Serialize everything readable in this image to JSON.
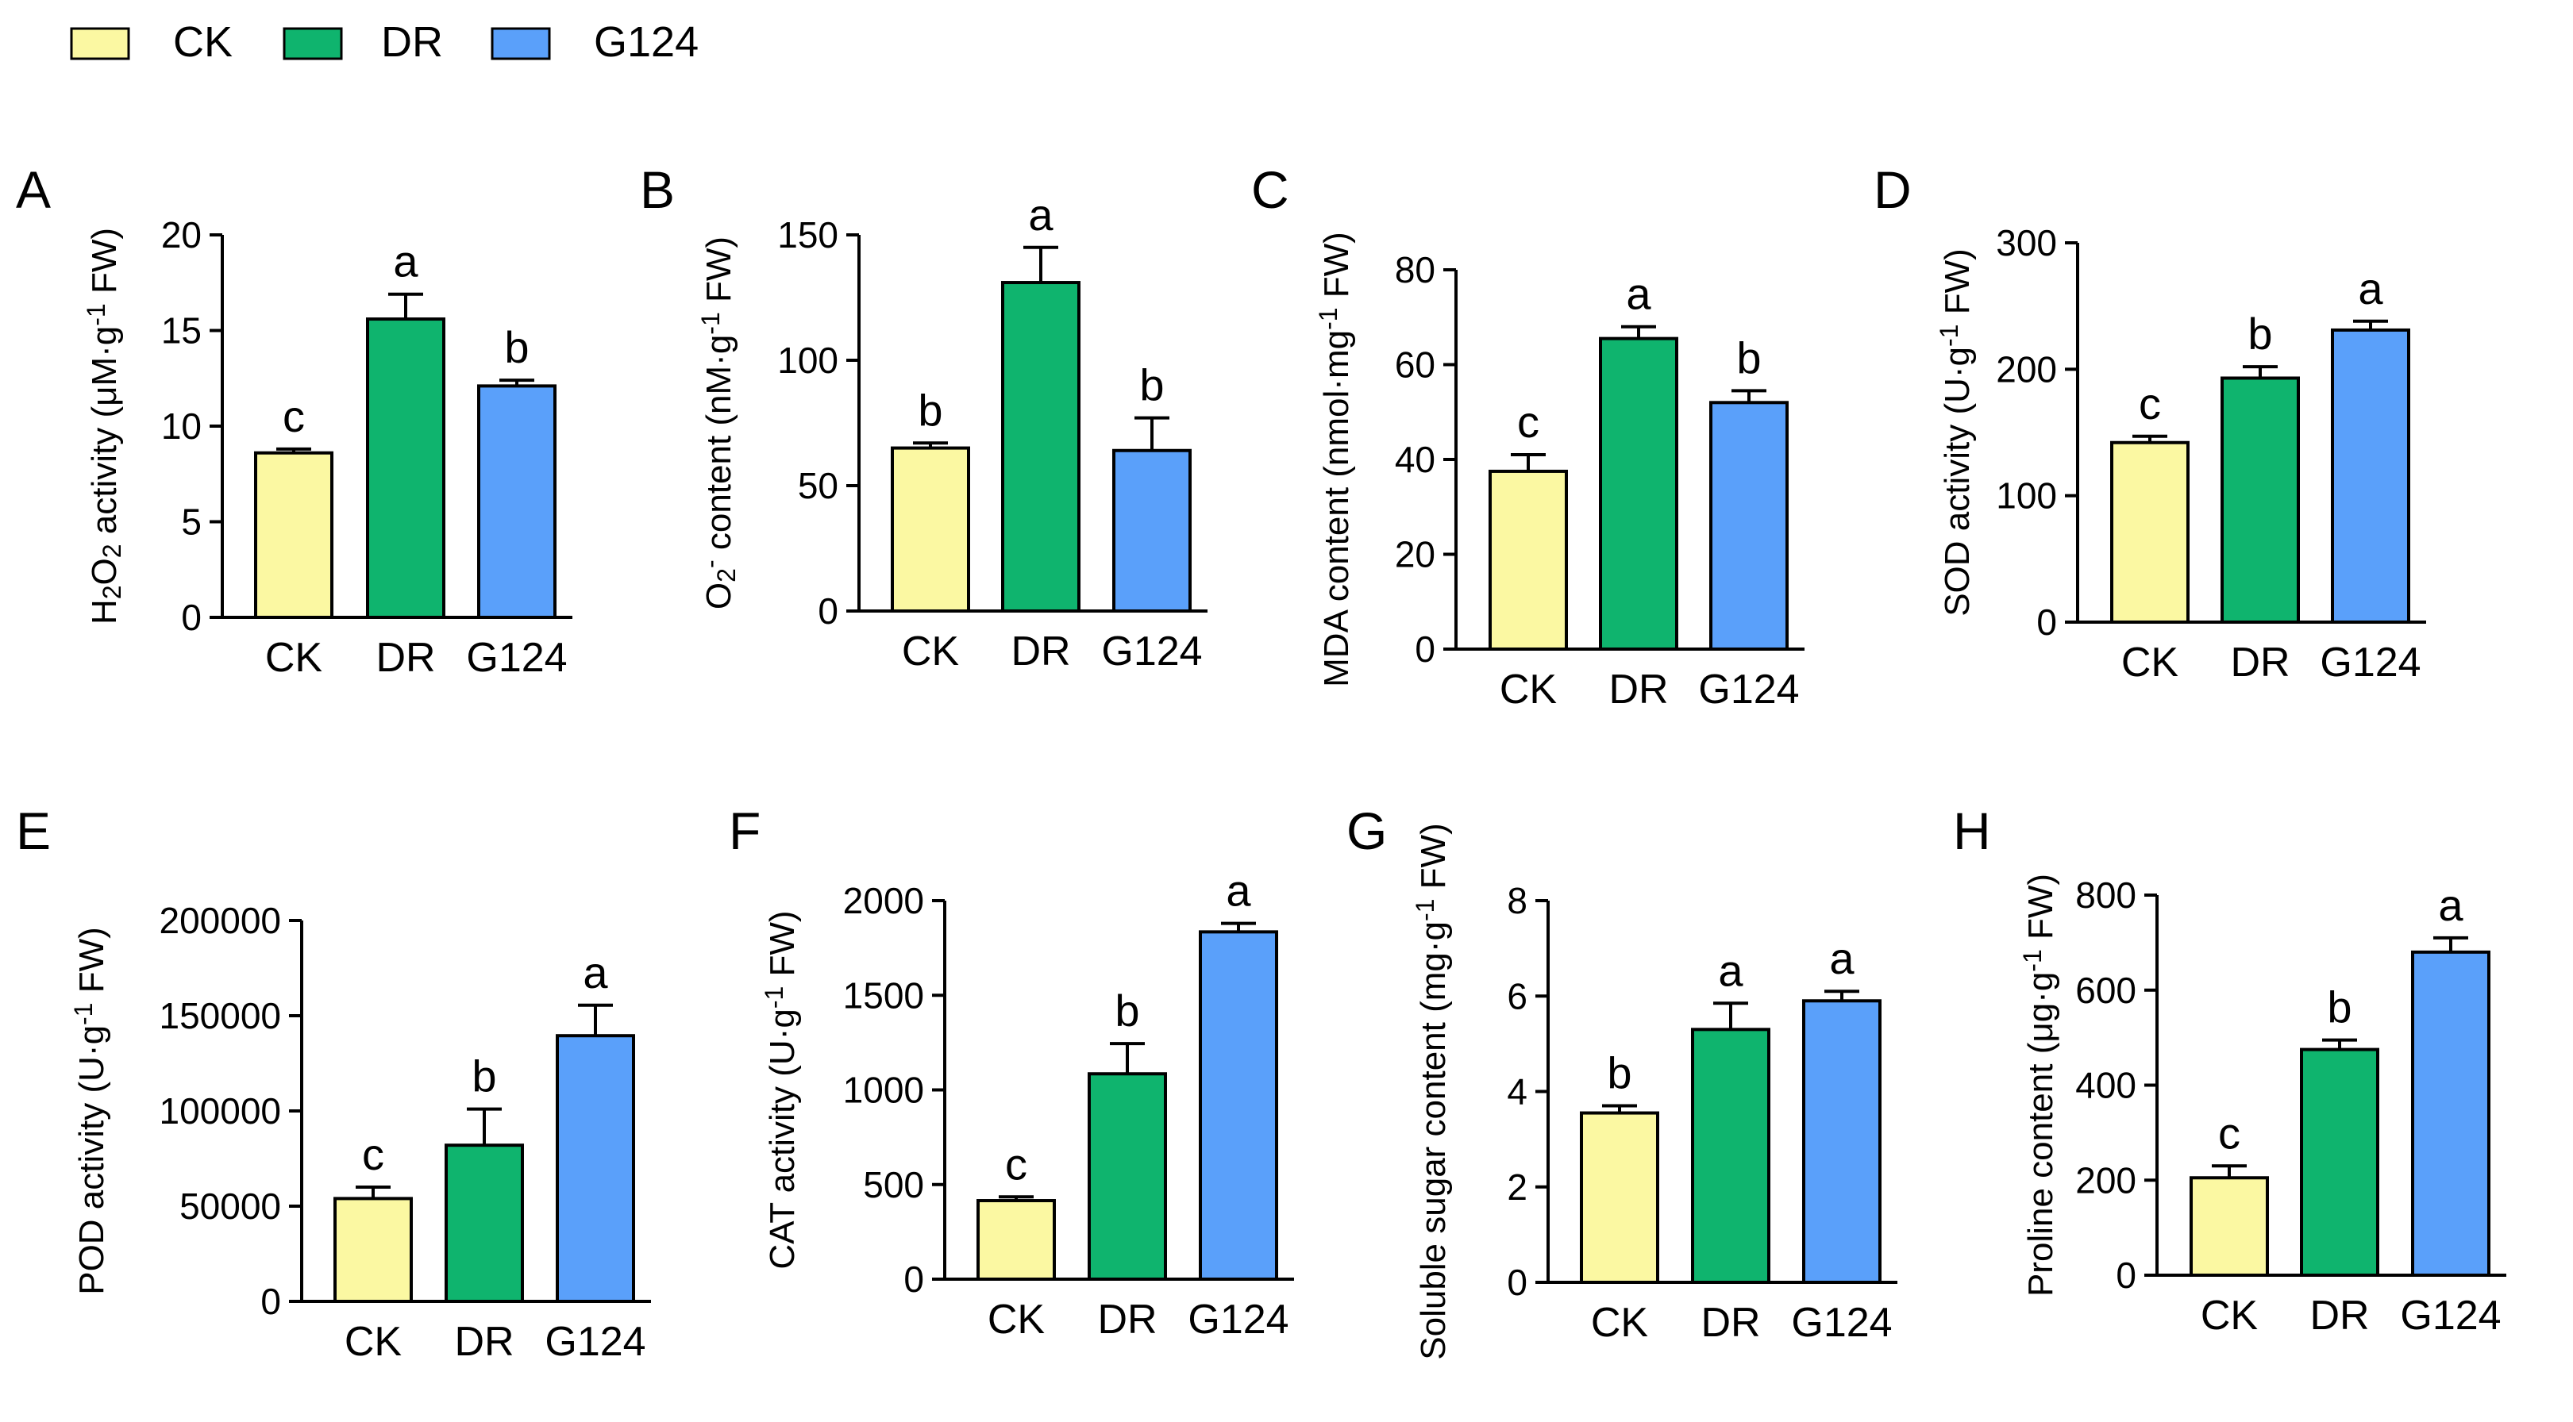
{
  "legend": [
    {
      "label": "CK",
      "color": "#fbf8a2"
    },
    {
      "label": "DR",
      "color": "#0fb46e"
    },
    {
      "label": "G124",
      "color": "#5aa0fa"
    }
  ],
  "chart_data": [
    {
      "panel": "A",
      "type": "bar",
      "title": "",
      "ylabel_parts": [
        "H",
        "2",
        "O",
        "2",
        " activity (μM·g",
        "-1",
        " FW)"
      ],
      "categories": [
        "CK",
        "DR",
        "G124"
      ],
      "values": [
        8.6,
        15.6,
        12.1
      ],
      "errors": [
        0.2,
        1.3,
        0.3
      ],
      "letters": [
        "c",
        "a",
        "b"
      ],
      "ylim": [
        0,
        20
      ],
      "yticks": [
        0,
        5,
        10,
        15,
        20
      ]
    },
    {
      "panel": "B",
      "type": "bar",
      "title": "",
      "ylabel_parts": [
        "O",
        "2",
        "-",
        " content (nM·g",
        "-1",
        " FW)"
      ],
      "categories": [
        "CK",
        "DR",
        "G124"
      ],
      "values": [
        65,
        131,
        64
      ],
      "errors": [
        2,
        14,
        13
      ],
      "letters": [
        "b",
        "a",
        "b"
      ],
      "ylim": [
        0,
        150
      ],
      "yticks": [
        0,
        50,
        100,
        150
      ]
    },
    {
      "panel": "C",
      "type": "bar",
      "title": "",
      "ylabel_parts": [
        "MDA content (nmol·mg",
        "-1",
        " FW)"
      ],
      "categories": [
        "CK",
        "DR",
        "G124"
      ],
      "values": [
        37.5,
        65.5,
        52
      ],
      "errors": [
        3.5,
        2.5,
        2.5
      ],
      "letters": [
        "c",
        "a",
        "b"
      ],
      "ylim": [
        0,
        80
      ],
      "yticks": [
        0,
        20,
        40,
        60,
        80
      ]
    },
    {
      "panel": "D",
      "type": "bar",
      "title": "",
      "ylabel_parts": [
        "SOD activity (U·g",
        "-1",
        " FW)"
      ],
      "categories": [
        "CK",
        "DR",
        "G124"
      ],
      "values": [
        142,
        193,
        231
      ],
      "errors": [
        5,
        9,
        7
      ],
      "letters": [
        "c",
        "b",
        "a"
      ],
      "ylim": [
        0,
        300
      ],
      "yticks": [
        0,
        100,
        200,
        300
      ]
    },
    {
      "panel": "E",
      "type": "bar",
      "title": "",
      "ylabel_parts": [
        "POD activity (U·g",
        "-1",
        " FW)"
      ],
      "categories": [
        "CK",
        "DR",
        "G124"
      ],
      "values": [
        54000,
        82000,
        139500
      ],
      "errors": [
        6000,
        19000,
        16000
      ],
      "letters": [
        "c",
        "b",
        "a"
      ],
      "ylim": [
        0,
        200000
      ],
      "yticks": [
        0,
        50000,
        100000,
        150000,
        200000
      ]
    },
    {
      "panel": "F",
      "type": "bar",
      "title": "",
      "ylabel_parts": [
        "CAT activity  (U·g",
        "-1",
        " FW)"
      ],
      "categories": [
        "CK",
        "DR",
        "G124"
      ],
      "values": [
        415,
        1085,
        1835
      ],
      "errors": [
        20,
        160,
        45
      ],
      "letters": [
        "c",
        "b",
        "a"
      ],
      "ylim": [
        0,
        2000
      ],
      "yticks": [
        0,
        500,
        1000,
        1500,
        2000
      ]
    },
    {
      "panel": "G",
      "type": "bar",
      "title": "",
      "ylabel_parts": [
        "Soluble sugar content (mg·g",
        "-1",
        " FW)"
      ],
      "categories": [
        "CK",
        "DR",
        "G124"
      ],
      "values": [
        3.55,
        5.3,
        5.9
      ],
      "errors": [
        0.15,
        0.55,
        0.2
      ],
      "letters": [
        "b",
        "a",
        "a"
      ],
      "ylim": [
        0,
        8
      ],
      "yticks": [
        0,
        2,
        4,
        6,
        8
      ]
    },
    {
      "panel": "H",
      "type": "bar",
      "title": "",
      "ylabel_parts": [
        "Proline content (μg·g",
        "-1",
        " FW)"
      ],
      "categories": [
        "CK",
        "DR",
        "G124"
      ],
      "values": [
        205,
        475,
        680
      ],
      "errors": [
        25,
        20,
        30
      ],
      "letters": [
        "c",
        "b",
        "a"
      ],
      "ylim": [
        0,
        800
      ],
      "yticks": [
        0,
        200,
        400,
        600,
        800
      ]
    }
  ]
}
